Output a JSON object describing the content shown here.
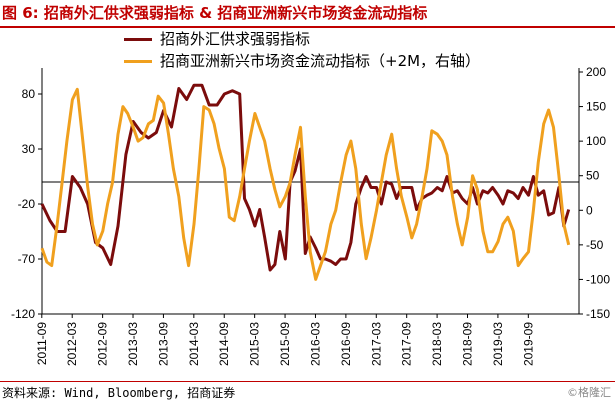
{
  "header": {
    "title": "图 6:  招商外汇供求强弱指标  &  招商亚洲新兴市场资金流动指标"
  },
  "footer": {
    "source": "资料来源: Wind, Bloomberg, 招商证券",
    "watermark": "©格隆汇"
  },
  "chart_data": {
    "type": "line",
    "x_tick_labels": [
      "2011-09",
      "2012-03",
      "2012-09",
      "2013-03",
      "2013-09",
      "2014-03",
      "2014-09",
      "2015-03",
      "2015-09",
      "2016-03",
      "2016-09",
      "2017-03",
      "2017-09",
      "2018-03",
      "2018-09",
      "2019-03",
      "2019-09"
    ],
    "left_axis": {
      "ticks": [
        "80",
        "30",
        "-20",
        "-70",
        "-120"
      ],
      "ylim": [
        -120,
        100
      ]
    },
    "right_axis": {
      "ticks": [
        "200",
        "150",
        "100",
        "50",
        "0",
        "-50",
        "-100",
        "-150"
      ],
      "ylim": [
        -150,
        200
      ]
    },
    "grid": false,
    "legend_position": "top-left",
    "series": [
      {
        "name": "招商外汇供求强弱指标",
        "axis": "left",
        "color": "#7b0c0c",
        "points": [
          [
            2011.67,
            -20
          ],
          [
            2011.8,
            -35
          ],
          [
            2011.92,
            -45
          ],
          [
            2012.05,
            -45
          ],
          [
            2012.17,
            5
          ],
          [
            2012.3,
            -5
          ],
          [
            2012.42,
            -20
          ],
          [
            2012.55,
            -55
          ],
          [
            2012.67,
            -60
          ],
          [
            2012.8,
            -75
          ],
          [
            2012.92,
            -40
          ],
          [
            2013.05,
            25
          ],
          [
            2013.17,
            55
          ],
          [
            2013.3,
            45
          ],
          [
            2013.42,
            40
          ],
          [
            2013.55,
            45
          ],
          [
            2013.67,
            65
          ],
          [
            2013.8,
            50
          ],
          [
            2013.92,
            85
          ],
          [
            2014.05,
            75
          ],
          [
            2014.17,
            88
          ],
          [
            2014.3,
            88
          ],
          [
            2014.42,
            70
          ],
          [
            2014.55,
            70
          ],
          [
            2014.67,
            80
          ],
          [
            2014.8,
            83
          ],
          [
            2014.92,
            80
          ],
          [
            2015.0,
            -15
          ],
          [
            2015.08,
            -25
          ],
          [
            2015.17,
            -40
          ],
          [
            2015.25,
            -25
          ],
          [
            2015.33,
            -50
          ],
          [
            2015.42,
            -80
          ],
          [
            2015.5,
            -75
          ],
          [
            2015.58,
            -45
          ],
          [
            2015.67,
            -70
          ],
          [
            2015.75,
            0
          ],
          [
            2015.83,
            10
          ],
          [
            2015.92,
            30
          ],
          [
            2016.0,
            -65
          ],
          [
            2016.08,
            -50
          ],
          [
            2016.17,
            -60
          ],
          [
            2016.25,
            -70
          ],
          [
            2016.33,
            -70
          ],
          [
            2016.42,
            -72
          ],
          [
            2016.5,
            -75
          ],
          [
            2016.58,
            -70
          ],
          [
            2016.67,
            -70
          ],
          [
            2016.75,
            -55
          ],
          [
            2016.83,
            -20
          ],
          [
            2016.92,
            -5
          ],
          [
            2017.0,
            5
          ],
          [
            2017.08,
            -5
          ],
          [
            2017.17,
            -5
          ],
          [
            2017.25,
            -20
          ],
          [
            2017.33,
            0
          ],
          [
            2017.42,
            -2
          ],
          [
            2017.5,
            -15
          ],
          [
            2017.58,
            -5
          ],
          [
            2017.67,
            -5
          ],
          [
            2017.75,
            -5
          ],
          [
            2017.83,
            -25
          ],
          [
            2017.92,
            -15
          ],
          [
            2018.0,
            -12
          ],
          [
            2018.08,
            -10
          ],
          [
            2018.17,
            -5
          ],
          [
            2018.25,
            -8
          ],
          [
            2018.33,
            5
          ],
          [
            2018.42,
            -10
          ],
          [
            2018.5,
            -8
          ],
          [
            2018.58,
            -15
          ],
          [
            2018.67,
            -20
          ],
          [
            2018.75,
            -5
          ],
          [
            2018.83,
            -20
          ],
          [
            2018.92,
            -8
          ],
          [
            2019.0,
            -10
          ],
          [
            2019.08,
            -5
          ],
          [
            2019.17,
            -12
          ],
          [
            2019.25,
            -20
          ],
          [
            2019.33,
            -8
          ],
          [
            2019.42,
            -10
          ],
          [
            2019.5,
            -15
          ],
          [
            2019.58,
            -5
          ],
          [
            2019.67,
            -12
          ],
          [
            2019.75,
            5
          ],
          [
            2019.83,
            -12
          ],
          [
            2019.92,
            -8
          ],
          [
            2020.0,
            -30
          ],
          [
            2020.08,
            -28
          ],
          [
            2020.17,
            -5
          ],
          [
            2020.25,
            -40
          ],
          [
            2020.33,
            -25
          ]
        ]
      },
      {
        "name": "招商亚洲新兴市场资金流动指标（+2M，右轴）",
        "axis": "right",
        "color": "#f0a01e",
        "points": [
          [
            2011.67,
            -55
          ],
          [
            2011.75,
            -75
          ],
          [
            2011.83,
            -80
          ],
          [
            2011.92,
            -20
          ],
          [
            2012.0,
            40
          ],
          [
            2012.08,
            100
          ],
          [
            2012.17,
            160
          ],
          [
            2012.25,
            175
          ],
          [
            2012.33,
            110
          ],
          [
            2012.42,
            35
          ],
          [
            2012.5,
            -20
          ],
          [
            2012.58,
            -50
          ],
          [
            2012.67,
            -30
          ],
          [
            2012.75,
            10
          ],
          [
            2012.83,
            40
          ],
          [
            2012.92,
            110
          ],
          [
            2013.0,
            150
          ],
          [
            2013.08,
            140
          ],
          [
            2013.17,
            120
          ],
          [
            2013.25,
            100
          ],
          [
            2013.33,
            105
          ],
          [
            2013.42,
            125
          ],
          [
            2013.5,
            130
          ],
          [
            2013.58,
            165
          ],
          [
            2013.67,
            155
          ],
          [
            2013.75,
            110
          ],
          [
            2013.83,
            60
          ],
          [
            2013.92,
            20
          ],
          [
            2014.0,
            -40
          ],
          [
            2014.08,
            -80
          ],
          [
            2014.17,
            -20
          ],
          [
            2014.25,
            60
          ],
          [
            2014.33,
            150
          ],
          [
            2014.42,
            145
          ],
          [
            2014.5,
            125
          ],
          [
            2014.58,
            90
          ],
          [
            2014.67,
            60
          ],
          [
            2014.75,
            -10
          ],
          [
            2014.83,
            -15
          ],
          [
            2014.92,
            20
          ],
          [
            2015.0,
            60
          ],
          [
            2015.08,
            100
          ],
          [
            2015.17,
            140
          ],
          [
            2015.25,
            120
          ],
          [
            2015.33,
            100
          ],
          [
            2015.42,
            60
          ],
          [
            2015.5,
            30
          ],
          [
            2015.58,
            5
          ],
          [
            2015.67,
            20
          ],
          [
            2015.75,
            40
          ],
          [
            2015.83,
            80
          ],
          [
            2015.92,
            120
          ],
          [
            2016.0,
            20
          ],
          [
            2016.08,
            -60
          ],
          [
            2016.17,
            -100
          ],
          [
            2016.25,
            -80
          ],
          [
            2016.33,
            -60
          ],
          [
            2016.42,
            -20
          ],
          [
            2016.5,
            0
          ],
          [
            2016.58,
            40
          ],
          [
            2016.67,
            80
          ],
          [
            2016.75,
            100
          ],
          [
            2016.83,
            60
          ],
          [
            2016.92,
            -20
          ],
          [
            2017.0,
            -70
          ],
          [
            2017.08,
            -40
          ],
          [
            2017.17,
            0
          ],
          [
            2017.25,
            40
          ],
          [
            2017.33,
            80
          ],
          [
            2017.42,
            110
          ],
          [
            2017.5,
            60
          ],
          [
            2017.58,
            20
          ],
          [
            2017.67,
            -10
          ],
          [
            2017.75,
            -40
          ],
          [
            2017.83,
            -20
          ],
          [
            2017.92,
            20
          ],
          [
            2018.0,
            60
          ],
          [
            2018.08,
            115
          ],
          [
            2018.17,
            110
          ],
          [
            2018.25,
            100
          ],
          [
            2018.33,
            80
          ],
          [
            2018.42,
            20
          ],
          [
            2018.5,
            -20
          ],
          [
            2018.58,
            -50
          ],
          [
            2018.67,
            -10
          ],
          [
            2018.75,
            50
          ],
          [
            2018.83,
            30
          ],
          [
            2018.92,
            -30
          ],
          [
            2019.0,
            -60
          ],
          [
            2019.08,
            -60
          ],
          [
            2019.17,
            -45
          ],
          [
            2019.25,
            -20
          ],
          [
            2019.33,
            -10
          ],
          [
            2019.42,
            -30
          ],
          [
            2019.5,
            -80
          ],
          [
            2019.58,
            -70
          ],
          [
            2019.67,
            -60
          ],
          [
            2019.75,
            0
          ],
          [
            2019.83,
            70
          ],
          [
            2019.92,
            125
          ],
          [
            2020.0,
            145
          ],
          [
            2020.08,
            120
          ],
          [
            2020.17,
            50
          ],
          [
            2020.25,
            -20
          ],
          [
            2020.33,
            -50
          ]
        ]
      }
    ]
  }
}
